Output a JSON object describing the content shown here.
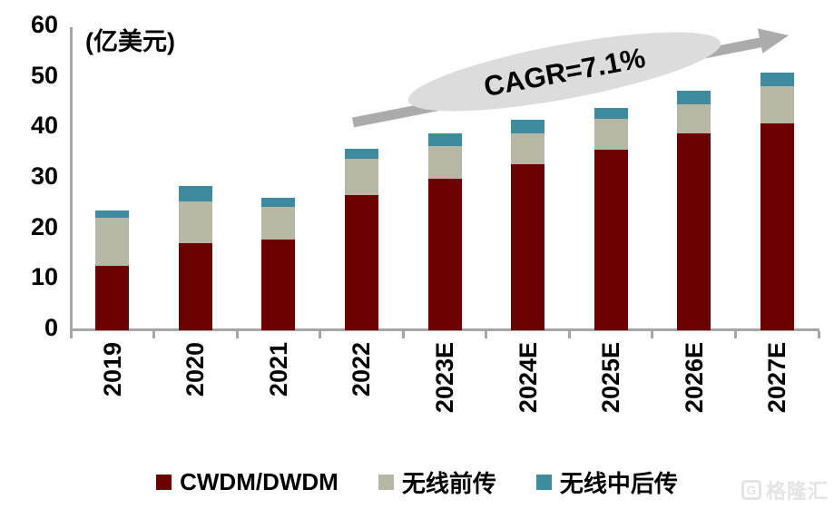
{
  "chart": {
    "unit_label": "(亿美元)",
    "annotation_text": "CAGR=7.1%",
    "watermark_text": "格隆汇",
    "watermark_mark": "G"
  },
  "colors": {
    "axis": "#a6a6a6",
    "arrow": "#ababab",
    "ellipse_fill": "#dcdcdc",
    "series_cwdm": "#6b0100",
    "series_fronthaul": "#b7b7a6",
    "series_midbackhaul": "#3e8ba0"
  },
  "chart_data": {
    "type": "bar",
    "stacked": true,
    "title": "",
    "xlabel": "",
    "ylabel": "(亿美元)",
    "ylim": [
      0,
      60
    ],
    "yticks": [
      0,
      10,
      20,
      30,
      40,
      50,
      60
    ],
    "grid": false,
    "legend_position": "bottom",
    "categories": [
      "2019",
      "2020",
      "2021",
      "2022",
      "2023E",
      "2024E",
      "2025E",
      "2026E",
      "2027E"
    ],
    "series": [
      {
        "name": "CWDM/DWDM",
        "color": "#6b0100",
        "values": [
          12.8,
          17.2,
          17.9,
          26.8,
          30.0,
          32.9,
          35.8,
          38.9,
          41.0
        ]
      },
      {
        "name": "无线前传",
        "color": "#b7b7a6",
        "values": [
          9.4,
          8.3,
          6.5,
          7.2,
          6.5,
          6.0,
          6.0,
          5.8,
          7.3
        ]
      },
      {
        "name": "无线中后传",
        "color": "#3e8ba0",
        "values": [
          1.5,
          3.1,
          1.8,
          2.0,
          2.4,
          2.7,
          2.3,
          2.7,
          2.7
        ]
      }
    ],
    "totals": [
      23.7,
      28.6,
      26.2,
      36.0,
      38.9,
      41.6,
      44.1,
      47.4,
      51.0
    ],
    "annotation": {
      "label": "CAGR=7.1%",
      "span": "2022-2027E"
    }
  }
}
